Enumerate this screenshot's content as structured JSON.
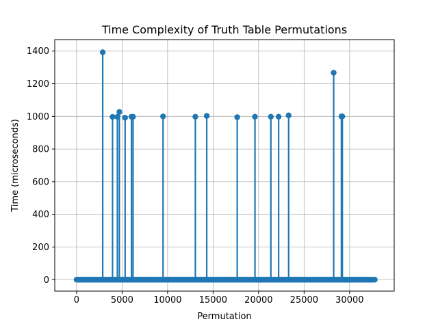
{
  "chart_data": {
    "type": "stem",
    "title": "Time Complexity of Truth Table Permutations",
    "xlabel": "Permutation",
    "ylabel": "Time (microseconds)",
    "xlim": [
      -2400,
      34900
    ],
    "ylim": [
      -70,
      1470
    ],
    "xticks": [
      0,
      5000,
      10000,
      15000,
      20000,
      25000,
      30000
    ],
    "yticks": [
      0,
      200,
      400,
      600,
      800,
      1000,
      1200,
      1400
    ],
    "grid": true,
    "baseline": {
      "x_start": 0,
      "x_end": 32767,
      "value": 0
    },
    "color": "#1f77b4",
    "spikes": [
      {
        "x": 2870,
        "y": 1393
      },
      {
        "x": 3950,
        "y": 997
      },
      {
        "x": 4480,
        "y": 997
      },
      {
        "x": 4700,
        "y": 1027
      },
      {
        "x": 5330,
        "y": 992
      },
      {
        "x": 6030,
        "y": 998
      },
      {
        "x": 6200,
        "y": 998
      },
      {
        "x": 9500,
        "y": 1000
      },
      {
        "x": 13050,
        "y": 998
      },
      {
        "x": 14300,
        "y": 1003
      },
      {
        "x": 17650,
        "y": 995
      },
      {
        "x": 19600,
        "y": 998
      },
      {
        "x": 21350,
        "y": 998
      },
      {
        "x": 22200,
        "y": 998
      },
      {
        "x": 23300,
        "y": 1006
      },
      {
        "x": 28250,
        "y": 1267
      },
      {
        "x": 29100,
        "y": 1000
      },
      {
        "x": 29200,
        "y": 1000
      }
    ]
  }
}
